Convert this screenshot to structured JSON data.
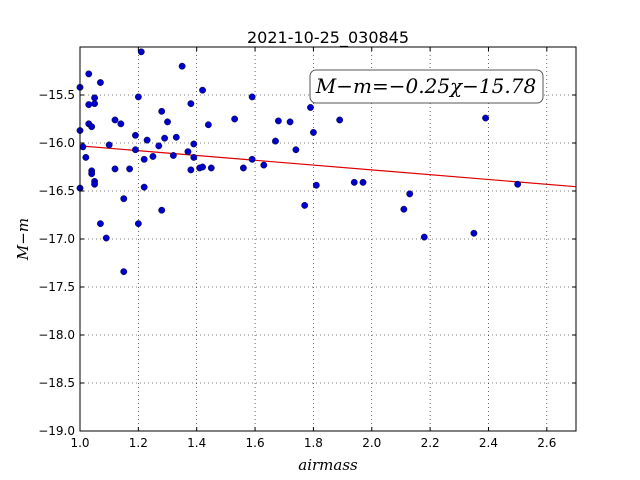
{
  "chart_data": {
    "type": "scatter",
    "title": "2021-10-25_030845",
    "xlabel": "airmass",
    "ylabel": "M−m",
    "xlim": [
      1.0,
      2.7
    ],
    "ylim": [
      -19.0,
      -15.0
    ],
    "y_inverted": true,
    "xticks": [
      "1.0",
      "1.2",
      "1.4",
      "1.6",
      "1.8",
      "2.0",
      "2.2",
      "2.4",
      "2.6"
    ],
    "yticks": [
      "−15.5",
      "−16.0",
      "−16.5",
      "−17.0",
      "−17.5",
      "−18.0",
      "−18.5",
      "−19.0"
    ],
    "grid": true,
    "annotation": "M−m=−0.25χ−15.78",
    "point_color": "#0000cc",
    "fit_color": "#dd0000",
    "fit": {
      "slope": -0.25,
      "intercept": -15.78
    },
    "points": [
      [
        1.0,
        -15.42
      ],
      [
        1.0,
        -15.87
      ],
      [
        1.01,
        -16.04
      ],
      [
        1.02,
        -16.15
      ],
      [
        1.0,
        -16.47
      ],
      [
        1.03,
        -15.28
      ],
      [
        1.03,
        -15.6
      ],
      [
        1.03,
        -15.8
      ],
      [
        1.04,
        -15.83
      ],
      [
        1.05,
        -15.53
      ],
      [
        1.05,
        -15.59
      ],
      [
        1.04,
        -16.29
      ],
      [
        1.04,
        -16.32
      ],
      [
        1.05,
        -16.4
      ],
      [
        1.05,
        -16.43
      ],
      [
        1.07,
        -15.37
      ],
      [
        1.07,
        -16.84
      ],
      [
        1.09,
        -16.99
      ],
      [
        1.1,
        -16.02
      ],
      [
        1.12,
        -15.76
      ],
      [
        1.12,
        -16.27
      ],
      [
        1.14,
        -15.8
      ],
      [
        1.15,
        -16.58
      ],
      [
        1.15,
        -17.34
      ],
      [
        1.17,
        -16.27
      ],
      [
        1.19,
        -15.92
      ],
      [
        1.19,
        -16.07
      ],
      [
        1.2,
        -16.84
      ],
      [
        1.2,
        -15.52
      ],
      [
        1.21,
        -15.05
      ],
      [
        1.22,
        -16.17
      ],
      [
        1.22,
        -16.46
      ],
      [
        1.23,
        -15.97
      ],
      [
        1.25,
        -16.14
      ],
      [
        1.27,
        -16.03
      ],
      [
        1.28,
        -16.7
      ],
      [
        1.28,
        -15.67
      ],
      [
        1.29,
        -15.95
      ],
      [
        1.3,
        -15.78
      ],
      [
        1.32,
        -16.13
      ],
      [
        1.33,
        -15.94
      ],
      [
        1.35,
        -15.2
      ],
      [
        1.37,
        -16.09
      ],
      [
        1.38,
        -15.59
      ],
      [
        1.38,
        -16.28
      ],
      [
        1.39,
        -16.01
      ],
      [
        1.39,
        -16.15
      ],
      [
        1.41,
        -16.26
      ],
      [
        1.42,
        -15.45
      ],
      [
        1.42,
        -16.25
      ],
      [
        1.44,
        -15.81
      ],
      [
        1.45,
        -16.26
      ],
      [
        1.53,
        -15.75
      ],
      [
        1.56,
        -16.26
      ],
      [
        1.59,
        -15.52
      ],
      [
        1.59,
        -16.17
      ],
      [
        1.63,
        -16.23
      ],
      [
        1.67,
        -15.98
      ],
      [
        1.68,
        -15.77
      ],
      [
        1.72,
        -15.78
      ],
      [
        1.74,
        -16.07
      ],
      [
        1.77,
        -16.65
      ],
      [
        1.79,
        -15.63
      ],
      [
        1.8,
        -15.89
      ],
      [
        1.81,
        -16.44
      ],
      [
        1.89,
        -15.76
      ],
      [
        1.94,
        -16.41
      ],
      [
        1.97,
        -16.41
      ],
      [
        2.11,
        -16.69
      ],
      [
        2.13,
        -16.53
      ],
      [
        2.18,
        -16.98
      ],
      [
        2.35,
        -16.94
      ],
      [
        2.39,
        -15.74
      ],
      [
        2.5,
        -16.43
      ]
    ]
  }
}
